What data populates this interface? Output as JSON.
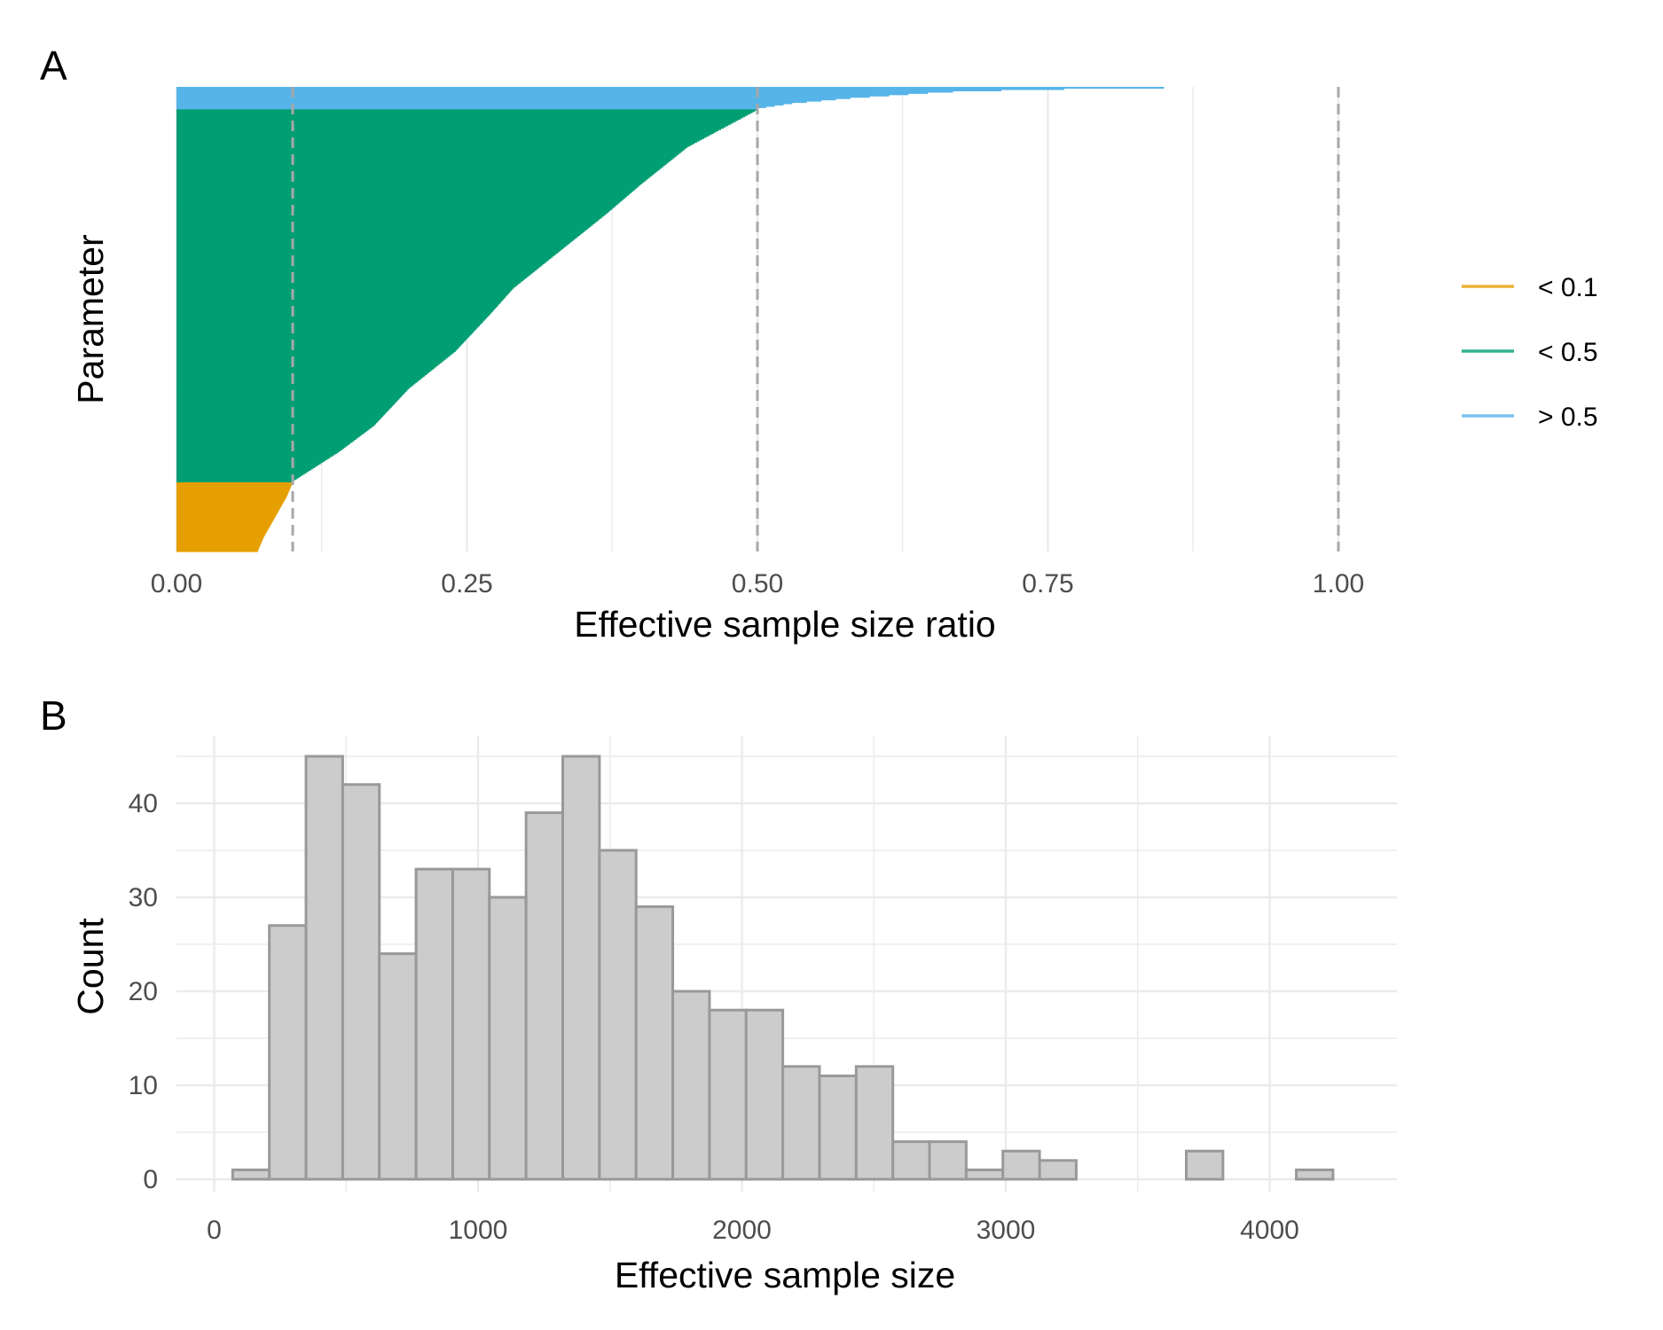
{
  "chart_data": [
    {
      "panel": "A",
      "type": "bar",
      "orientation": "horizontal",
      "note_sorted": "ratios sorted ascending, one bar per parameter",
      "xlabel": "Effective sample size ratio",
      "ylabel": "Parameter",
      "xlim": [
        0,
        1
      ],
      "x_ticks": [
        "0.00",
        "0.25",
        "0.50",
        "0.75",
        "1.00"
      ],
      "x_tick_values": [
        0,
        0.25,
        0.5,
        0.75,
        1.0
      ],
      "reference_lines": [
        0.1,
        0.5,
        1.0
      ],
      "grid": true,
      "legend_position": "right",
      "series": [
        {
          "name": "< 0.1",
          "color": "#E69F00",
          "count": 54,
          "profile": [
            [
              0,
              0.07
            ],
            [
              0.2,
              0.075
            ],
            [
              0.5,
              0.085
            ],
            [
              0.8,
              0.095
            ],
            [
              1,
              0.1
            ]
          ]
        },
        {
          "name": "< 0.5",
          "color": "#009E73",
          "count": 289,
          "profile": [
            [
              0,
              0.1
            ],
            [
              0.08,
              0.14
            ],
            [
              0.15,
              0.17
            ],
            [
              0.25,
              0.2
            ],
            [
              0.35,
              0.24
            ],
            [
              0.45,
              0.27
            ],
            [
              0.52,
              0.29
            ],
            [
              0.62,
              0.33
            ],
            [
              0.72,
              0.37
            ],
            [
              0.8,
              0.4
            ],
            [
              0.9,
              0.44
            ],
            [
              1,
              0.5
            ]
          ]
        },
        {
          "name": "> 0.5",
          "color": "#56B4E9",
          "count": 17,
          "profile": [
            [
              0,
              0.5
            ],
            [
              0.25,
              0.53
            ],
            [
              0.5,
              0.58
            ],
            [
              0.8,
              0.66
            ],
            [
              0.92,
              0.74
            ],
            [
              1,
              0.85
            ]
          ]
        }
      ]
    },
    {
      "panel": "B",
      "type": "bar",
      "histogram": true,
      "xlabel": "Effective sample size",
      "ylabel": "Count",
      "xlim": [
        0,
        4400
      ],
      "ylim": [
        0,
        47
      ],
      "x_ticks": [
        "0",
        "1000",
        "2000",
        "3000",
        "4000"
      ],
      "x_tick_values": [
        0,
        1000,
        2000,
        3000,
        4000
      ],
      "y_ticks": [
        "0",
        "10",
        "20",
        "30",
        "40"
      ],
      "y_tick_values": [
        0,
        10,
        20,
        30,
        40
      ],
      "bin_start": 70,
      "bin_width": 139,
      "values": [
        1,
        27,
        45,
        42,
        24,
        33,
        33,
        30,
        39,
        45,
        35,
        29,
        20,
        18,
        18,
        12,
        11,
        12,
        4,
        4,
        1,
        3,
        2,
        0,
        0,
        0,
        3,
        0,
        0,
        1
      ],
      "bar_fill": "#CCCCCC",
      "bar_stroke": "#999999",
      "grid": true
    }
  ],
  "panel_a": {
    "tag": "A"
  },
  "panel_b": {
    "tag": "B"
  },
  "colors": {
    "grid": "#EBEBEB",
    "refline": "#A8A8A8",
    "tick_text": "#4D4D4D"
  }
}
